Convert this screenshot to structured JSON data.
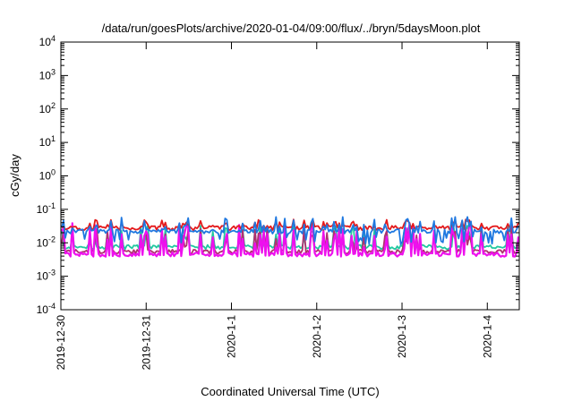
{
  "chart_data": {
    "type": "line",
    "title": "/data/run/goesPlots/archive/2020-01-04/09:00/flux/../bryn/5daysMoon.plot",
    "xlabel": "Coordinated Universal Time (UTC)",
    "ylabel": "cGy/day",
    "yscale": "log",
    "ylim": [
      0.0001,
      10000
    ],
    "y_ticks": [
      {
        "value": 0.0001,
        "base": "10",
        "exp": "-4"
      },
      {
        "value": 0.001,
        "base": "10",
        "exp": "-3"
      },
      {
        "value": 0.01,
        "base": "10",
        "exp": "-2"
      },
      {
        "value": 0.1,
        "base": "10",
        "exp": "-1"
      },
      {
        "value": 1,
        "base": "10",
        "exp": "0"
      },
      {
        "value": 10,
        "base": "10",
        "exp": "1"
      },
      {
        "value": 100,
        "base": "10",
        "exp": "2"
      },
      {
        "value": 1000,
        "base": "10",
        "exp": "3"
      },
      {
        "value": 10000,
        "base": "10",
        "exp": "4"
      }
    ],
    "xlim": [
      "2019-12-30T00:00",
      "2020-01-04T09:00"
    ],
    "x_ticks": [
      {
        "value": "2019-12-30T00:00",
        "label": "2019-12-30"
      },
      {
        "value": "2019-12-31T00:00",
        "label": "2019-12-31"
      },
      {
        "value": "2020-01-01T00:00",
        "label": "2020-1-1"
      },
      {
        "value": "2020-01-02T00:00",
        "label": "2020-1-2"
      },
      {
        "value": "2020-01-03T00:00",
        "label": "2020-1-3"
      },
      {
        "value": "2020-01-04T00:00",
        "label": "2020-1-4"
      }
    ],
    "grid": false,
    "legend": "none",
    "series": [
      {
        "color": "#e41a1c",
        "baseline": 0.028,
        "spike_max": 0.05,
        "low": 0.02
      },
      {
        "color": "#1f78e0",
        "baseline": 0.022,
        "spike_max": 0.06,
        "low": 0.009
      },
      {
        "color": "#20c8a0",
        "baseline": 0.0075,
        "spike_max": 0.035,
        "low": 0.006
      },
      {
        "color": "#b03070",
        "baseline": 0.0055,
        "spike_max": 0.03,
        "low": 0.0045
      },
      {
        "color": "#ee10ee",
        "baseline": 0.0045,
        "spike_max": 0.04,
        "low": 0.0035
      }
    ]
  }
}
